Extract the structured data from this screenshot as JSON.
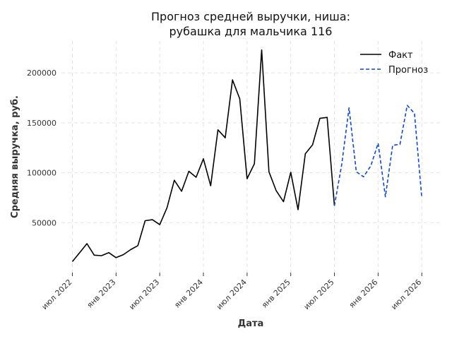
{
  "chart_data": {
    "type": "line",
    "title_lines": [
      "Прогноз средней выручки, ниша:",
      "рубашка для мальчика 116"
    ],
    "xlabel": "Дата",
    "ylabel": "Средняя выручка, руб.",
    "x_tick_labels": [
      "июл 2022",
      "янв 2023",
      "июл 2023",
      "янв 2024",
      "июл 2024",
      "янв 2025",
      "июл 2025",
      "янв 2026",
      "июл 2026"
    ],
    "x_tick_months": [
      0,
      6,
      12,
      18,
      24,
      30,
      36,
      42,
      48
    ],
    "xlim_months": [
      -1.5,
      50.5
    ],
    "y_ticks": [
      50000,
      100000,
      150000,
      200000
    ],
    "y_tick_labels": [
      "50000",
      "100000",
      "150000",
      "200000"
    ],
    "ylim": [
      0,
      232000
    ],
    "grid": true,
    "legend_position": "top-right",
    "series": [
      {
        "name": "Факт",
        "style": "solid",
        "color": "#000000",
        "x_months": [
          0,
          1,
          2,
          3,
          4,
          5,
          6,
          7,
          8,
          9,
          10,
          11,
          12,
          13,
          14,
          15,
          16,
          17,
          18,
          19,
          20,
          21,
          22,
          23,
          24,
          25,
          26,
          27,
          28,
          29,
          30,
          31,
          32,
          33,
          34,
          35,
          36
        ],
        "values": [
          11000,
          20000,
          29000,
          17500,
          17000,
          20000,
          15000,
          18000,
          23000,
          27000,
          52000,
          53000,
          48000,
          65000,
          92500,
          81500,
          101500,
          95500,
          114000,
          87000,
          143000,
          135000,
          193000,
          174000,
          94000,
          109000,
          223000,
          101000,
          82000,
          71000,
          100500,
          63000,
          119000,
          128000,
          154500,
          155500,
          67000
        ]
      },
      {
        "name": "Прогноз",
        "style": "dashed",
        "color": "#0b47d9",
        "x_months": [
          36,
          37,
          38,
          39,
          40,
          41,
          42,
          43,
          44,
          45,
          46,
          47,
          48
        ],
        "values": [
          67000,
          108000,
          165000,
          101000,
          96000,
          107000,
          129500,
          76000,
          127500,
          128500,
          167500,
          159500,
          75000
        ]
      }
    ]
  }
}
